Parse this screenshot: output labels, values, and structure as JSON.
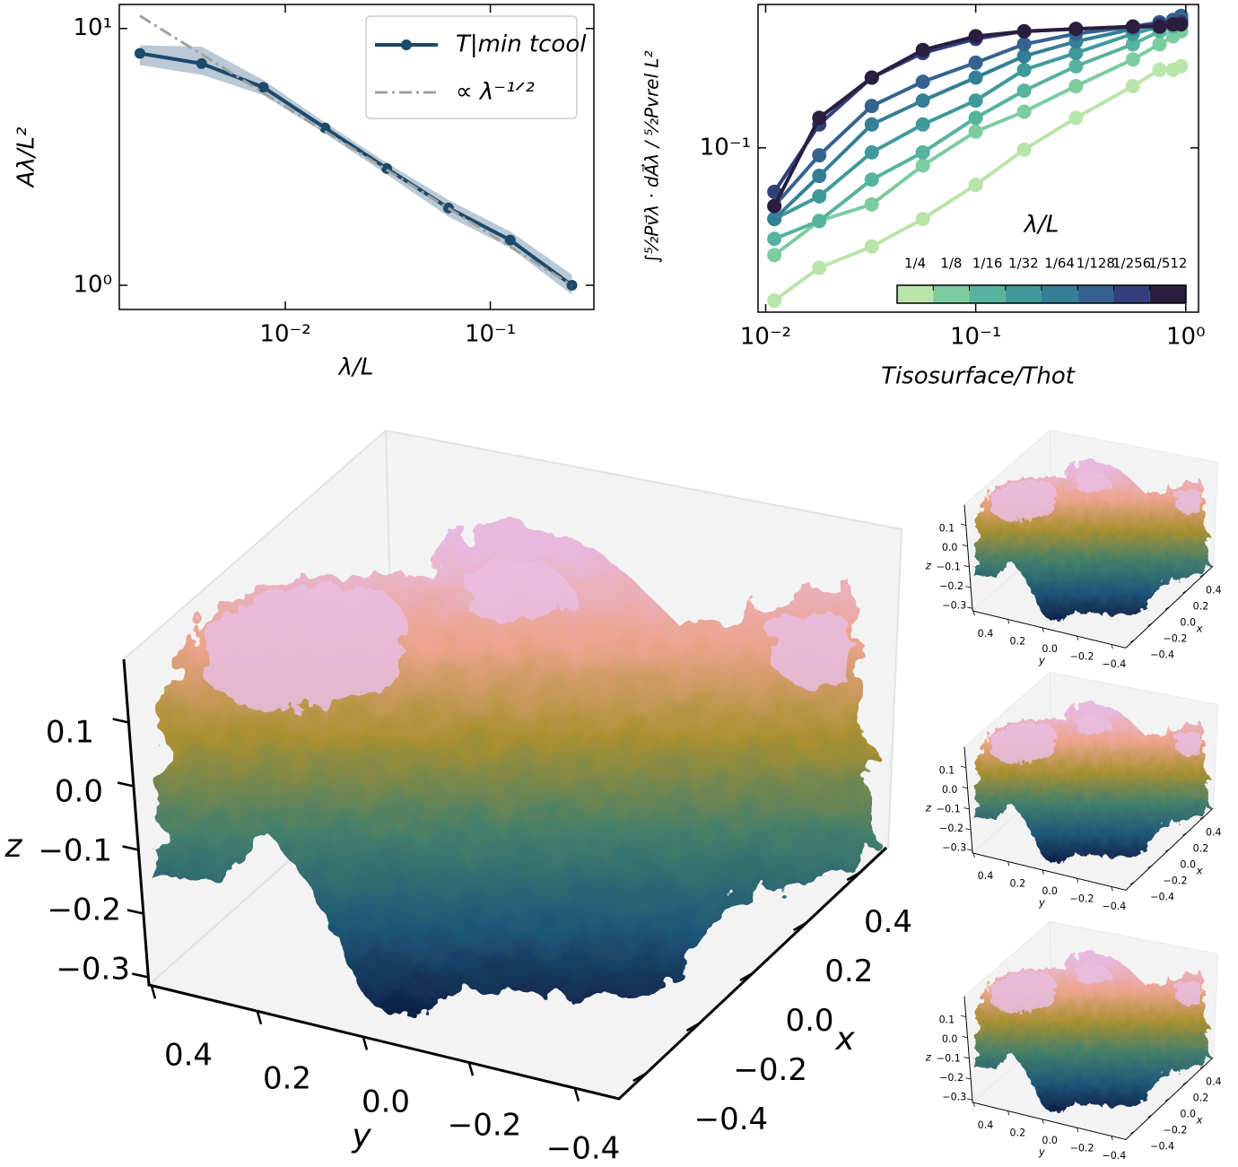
{
  "chart_data": [
    {
      "type": "line",
      "log_x": true,
      "log_y": true,
      "xlabel": "λ/L",
      "ylabel": "Aλ/L²",
      "x": [
        0.001953125,
        0.00390625,
        0.0078125,
        0.015625,
        0.03125,
        0.0625,
        0.125,
        0.25
      ],
      "series": [
        {
          "name": "T|min tcool",
          "color": "#1b4a6b",
          "marker": true,
          "values": [
            8.0,
            7.3,
            5.9,
            4.1,
            2.85,
            2.0,
            1.5,
            1.0
          ],
          "band_upper": [
            8.6,
            8.5,
            6.3,
            4.3,
            3.0,
            2.15,
            1.62,
            1.1
          ],
          "band_lower": [
            7.2,
            6.6,
            5.5,
            3.9,
            2.7,
            1.85,
            1.4,
            0.92
          ],
          "band_color": "#b9c9d5"
        },
        {
          "name": "∝ λ⁻¹ᐟ²",
          "color": "#a0a0a0",
          "dash": true,
          "marker": false,
          "x": [
            0.001953125,
            0.25
          ],
          "values": [
            11.2,
            1.0
          ]
        }
      ],
      "xlim": [
        0.00155,
        0.32
      ],
      "ylim": [
        0.805,
        12.4
      ],
      "xticks": [
        {
          "value": 0.01,
          "label": "10⁻²"
        },
        {
          "value": 0.1,
          "label": "10⁻¹"
        }
      ],
      "yticks": [
        {
          "value": 1,
          "label": "10⁰"
        },
        {
          "value": 10,
          "label": "10¹"
        }
      ],
      "legend": "upper right"
    },
    {
      "type": "line",
      "log_x": true,
      "log_y": true,
      "xlabel": "Tisosurface/Thot",
      "ylabel": "∫⁵⁄₂Pv⃗λ · dA⃗λ / ⁵⁄₂Pvrel L²",
      "legend_title": "λ/L",
      "x": [
        0.011,
        0.018,
        0.032,
        0.056,
        0.1,
        0.17,
        0.3,
        0.56,
        0.75,
        0.87,
        0.95
      ],
      "series": [
        {
          "name": "1/4",
          "color": "#b9e4aa",
          "marker": true,
          "values": [
            0.018,
            0.026,
            0.033,
            0.045,
            0.066,
            0.098,
            0.14,
            0.2,
            0.24,
            0.24,
            0.25
          ]
        },
        {
          "name": "1/8",
          "color": "#7ccca0",
          "marker": true,
          "values": [
            0.03,
            0.044,
            0.053,
            0.082,
            0.12,
            0.15,
            0.2,
            0.27,
            0.32,
            0.35,
            0.37
          ]
        },
        {
          "name": "1/16",
          "color": "#56b39d",
          "marker": true,
          "values": [
            0.036,
            0.044,
            0.07,
            0.095,
            0.14,
            0.19,
            0.25,
            0.32,
            0.37,
            0.39,
            0.4
          ]
        },
        {
          "name": "1/32",
          "color": "#3f9a99",
          "marker": true,
          "values": [
            0.045,
            0.058,
            0.095,
            0.13,
            0.17,
            0.24,
            0.29,
            0.36,
            0.39,
            0.41,
            0.42
          ]
        },
        {
          "name": "1/64",
          "color": "#347f96",
          "marker": true,
          "values": [
            0.045,
            0.073,
            0.13,
            0.17,
            0.22,
            0.28,
            0.33,
            0.38,
            0.4,
            0.42,
            0.43
          ]
        },
        {
          "name": "1/128",
          "color": "#35628f",
          "marker": true,
          "values": [
            0.052,
            0.092,
            0.16,
            0.21,
            0.26,
            0.32,
            0.36,
            0.39,
            0.41,
            0.42,
            0.44
          ]
        },
        {
          "name": "1/256",
          "color": "#31407c",
          "marker": true,
          "values": [
            0.061,
            0.13,
            0.22,
            0.29,
            0.34,
            0.37,
            0.38,
            0.39,
            0.4,
            0.4,
            0.41
          ]
        },
        {
          "name": "1/512",
          "color": "#291e3e",
          "marker": true,
          "values": [
            0.052,
            0.14,
            0.22,
            0.3,
            0.35,
            0.37,
            0.38,
            0.39,
            0.39,
            0.4,
            0.4
          ]
        }
      ],
      "xlim": [
        0.0092,
        1.15
      ],
      "ylim": [
        0.0158,
        0.5
      ],
      "xticks": [
        {
          "value": 0.01,
          "label": "10⁻²"
        },
        {
          "value": 0.1,
          "label": "10⁻¹"
        },
        {
          "value": 1,
          "label": "10⁰"
        }
      ],
      "yticks": [
        {
          "value": 0.1,
          "label": "10⁻¹"
        }
      ],
      "legend": "lower right"
    },
    {
      "type": "isosurface3d",
      "xlabel": "x",
      "ylabel": "y",
      "zlabel": "z",
      "xlim": [
        -0.5,
        0.5
      ],
      "ylim": [
        -0.5,
        0.5
      ],
      "zlim": [
        -0.35,
        0.15
      ],
      "xticks": [
        0.4,
        0.2,
        {
          "value": 0,
          "label": "0.0"
        },
        {
          "value": -0.2,
          "label": "−0.2"
        },
        {
          "value": -0.4,
          "label": "−0.4"
        }
      ],
      "yticks": [
        0.4,
        0.2,
        {
          "value": 0,
          "label": "0.0"
        },
        {
          "value": -0.2,
          "label": "−0.2"
        },
        {
          "value": -0.4,
          "label": "−0.4"
        }
      ],
      "zticks": [
        0.1,
        {
          "value": 0,
          "label": "0.0"
        },
        {
          "value": -0.1,
          "label": "−0.1"
        },
        {
          "value": -0.2,
          "label": "−0.2"
        },
        {
          "value": -0.3,
          "label": "−0.3"
        }
      ]
    },
    {
      "type": "isosurface3d",
      "xlabel": "x",
      "ylabel": "y",
      "zlabel": "z",
      "xlim": [
        -0.5,
        0.5
      ],
      "ylim": [
        -0.5,
        0.5
      ],
      "zlim": [
        -0.35,
        0.15
      ],
      "xticks": [
        0.4,
        0.2,
        {
          "value": 0,
          "label": "0.0"
        },
        {
          "value": -0.2,
          "label": "−0.2"
        },
        {
          "value": -0.4,
          "label": "−0.4"
        }
      ],
      "yticks": [
        0.4,
        0.2,
        {
          "value": 0,
          "label": "0.0"
        },
        {
          "value": -0.2,
          "label": "−0.2"
        },
        {
          "value": -0.4,
          "label": "−0.4"
        }
      ],
      "zticks": [
        0.1,
        {
          "value": 0,
          "label": "0.0"
        },
        {
          "value": -0.1,
          "label": "−0.1"
        },
        {
          "value": -0.2,
          "label": "−0.2"
        },
        {
          "value": -0.3,
          "label": "−0.3"
        }
      ]
    },
    {
      "type": "isosurface3d",
      "xlabel": "x",
      "ylabel": "y",
      "zlabel": "z",
      "xlim": [
        -0.5,
        0.5
      ],
      "ylim": [
        -0.5,
        0.5
      ],
      "zlim": [
        -0.35,
        0.15
      ],
      "xticks": [
        0.4,
        0.2,
        {
          "value": 0,
          "label": "0.0"
        },
        {
          "value": -0.2,
          "label": "−0.2"
        },
        {
          "value": -0.4,
          "label": "−0.4"
        }
      ],
      "yticks": [
        0.4,
        0.2,
        {
          "value": 0,
          "label": "0.0"
        },
        {
          "value": -0.2,
          "label": "−0.2"
        },
        {
          "value": -0.4,
          "label": "−0.4"
        }
      ],
      "zticks": [
        0.1,
        {
          "value": 0,
          "label": "0.0"
        },
        {
          "value": -0.1,
          "label": "−0.1"
        },
        {
          "value": -0.2,
          "label": "−0.2"
        },
        {
          "value": -0.3,
          "label": "−0.3"
        }
      ]
    },
    {
      "type": "isosurface3d",
      "xlabel": "x",
      "ylabel": "y",
      "zlabel": "z",
      "xlim": [
        -0.5,
        0.5
      ],
      "ylim": [
        -0.5,
        0.5
      ],
      "zlim": [
        -0.35,
        0.15
      ],
      "xticks": [
        0.4,
        0.2,
        {
          "value": 0,
          "label": "0.0"
        },
        {
          "value": -0.2,
          "label": "−0.2"
        },
        {
          "value": -0.4,
          "label": "−0.4"
        }
      ],
      "yticks": [
        0.4,
        0.2,
        {
          "value": 0,
          "label": "0.0"
        },
        {
          "value": -0.2,
          "label": "−0.2"
        },
        {
          "value": -0.4,
          "label": "−0.4"
        }
      ],
      "zticks": [
        0.1,
        {
          "value": 0,
          "label": "0.0"
        },
        {
          "value": -0.1,
          "label": "−0.1"
        },
        {
          "value": -0.2,
          "label": "−0.2"
        },
        {
          "value": -0.3,
          "label": "−0.3"
        }
      ]
    }
  ]
}
